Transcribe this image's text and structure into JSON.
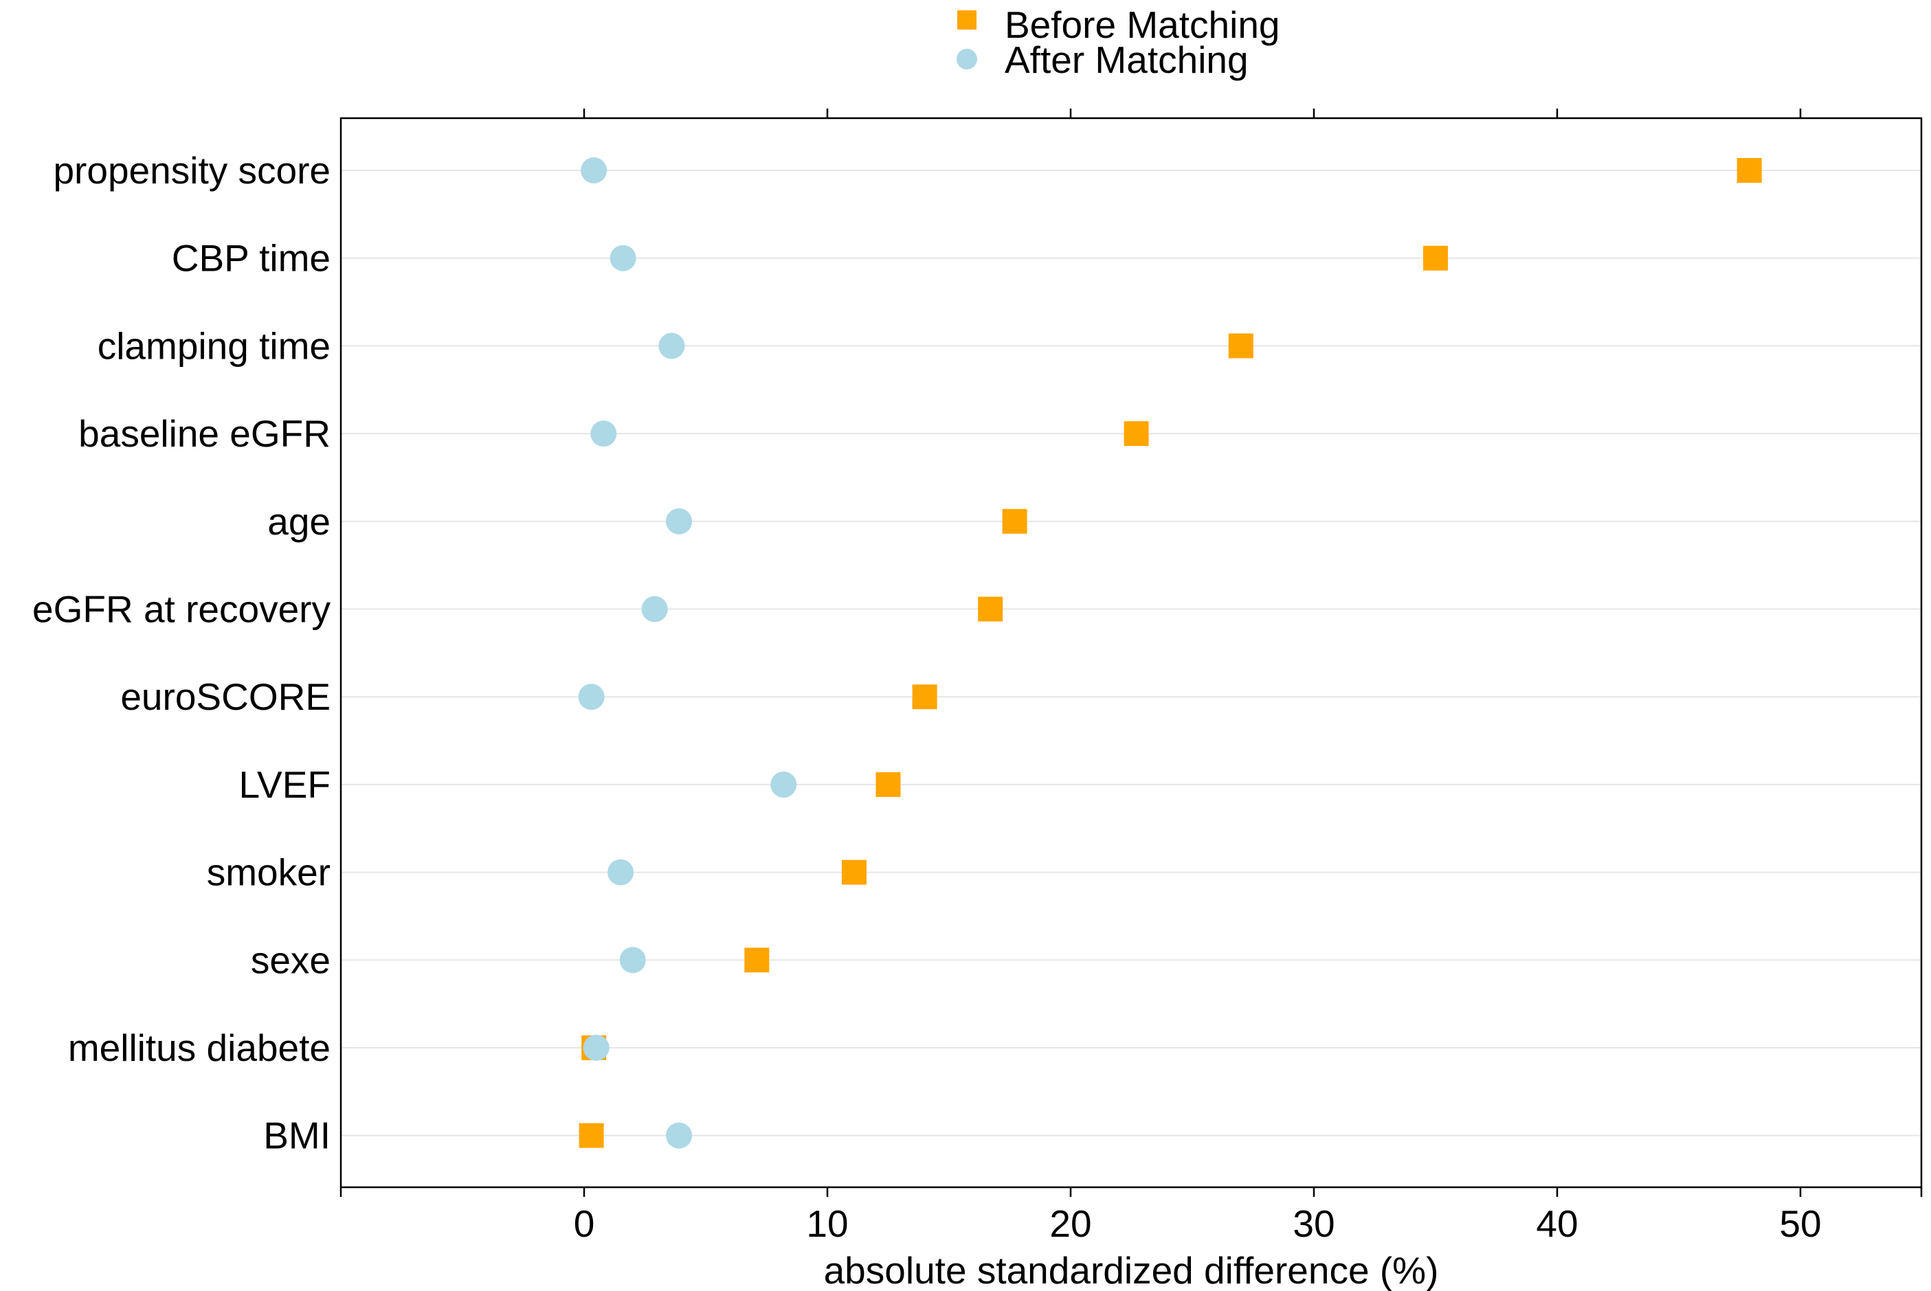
{
  "chart_data": {
    "type": "scatter",
    "xlabel": "absolute standardized difference (%)",
    "ylabel": "",
    "xlim": [
      -10,
      55
    ],
    "xticks": [
      0,
      10,
      20,
      30,
      40,
      50
    ],
    "xtick_labels": [
      "0",
      "10",
      "20",
      "30",
      "40",
      "50"
    ],
    "categories": [
      "propensity score",
      "CBP time",
      "clamping time",
      "baseline eGFR",
      "age",
      "eGFR at recovery",
      "euroSCORE",
      "LVEF",
      "smoker",
      "sexe",
      "mellitus diabete",
      "BMI"
    ],
    "series": [
      {
        "name": "Before Matching",
        "marker": "square",
        "color": "#FFA500",
        "values": [
          47.9,
          35.0,
          27.0,
          22.7,
          17.7,
          16.7,
          14.0,
          12.5,
          11.1,
          7.1,
          0.4,
          0.3
        ]
      },
      {
        "name": "After Matching",
        "marker": "circle",
        "color": "#ADD8E6",
        "values": [
          0.4,
          1.6,
          3.6,
          0.8,
          3.9,
          2.9,
          0.3,
          8.2,
          1.5,
          2.0,
          0.5,
          3.9
        ]
      }
    ],
    "grid": "horizontal",
    "legend_position": "top-center"
  }
}
